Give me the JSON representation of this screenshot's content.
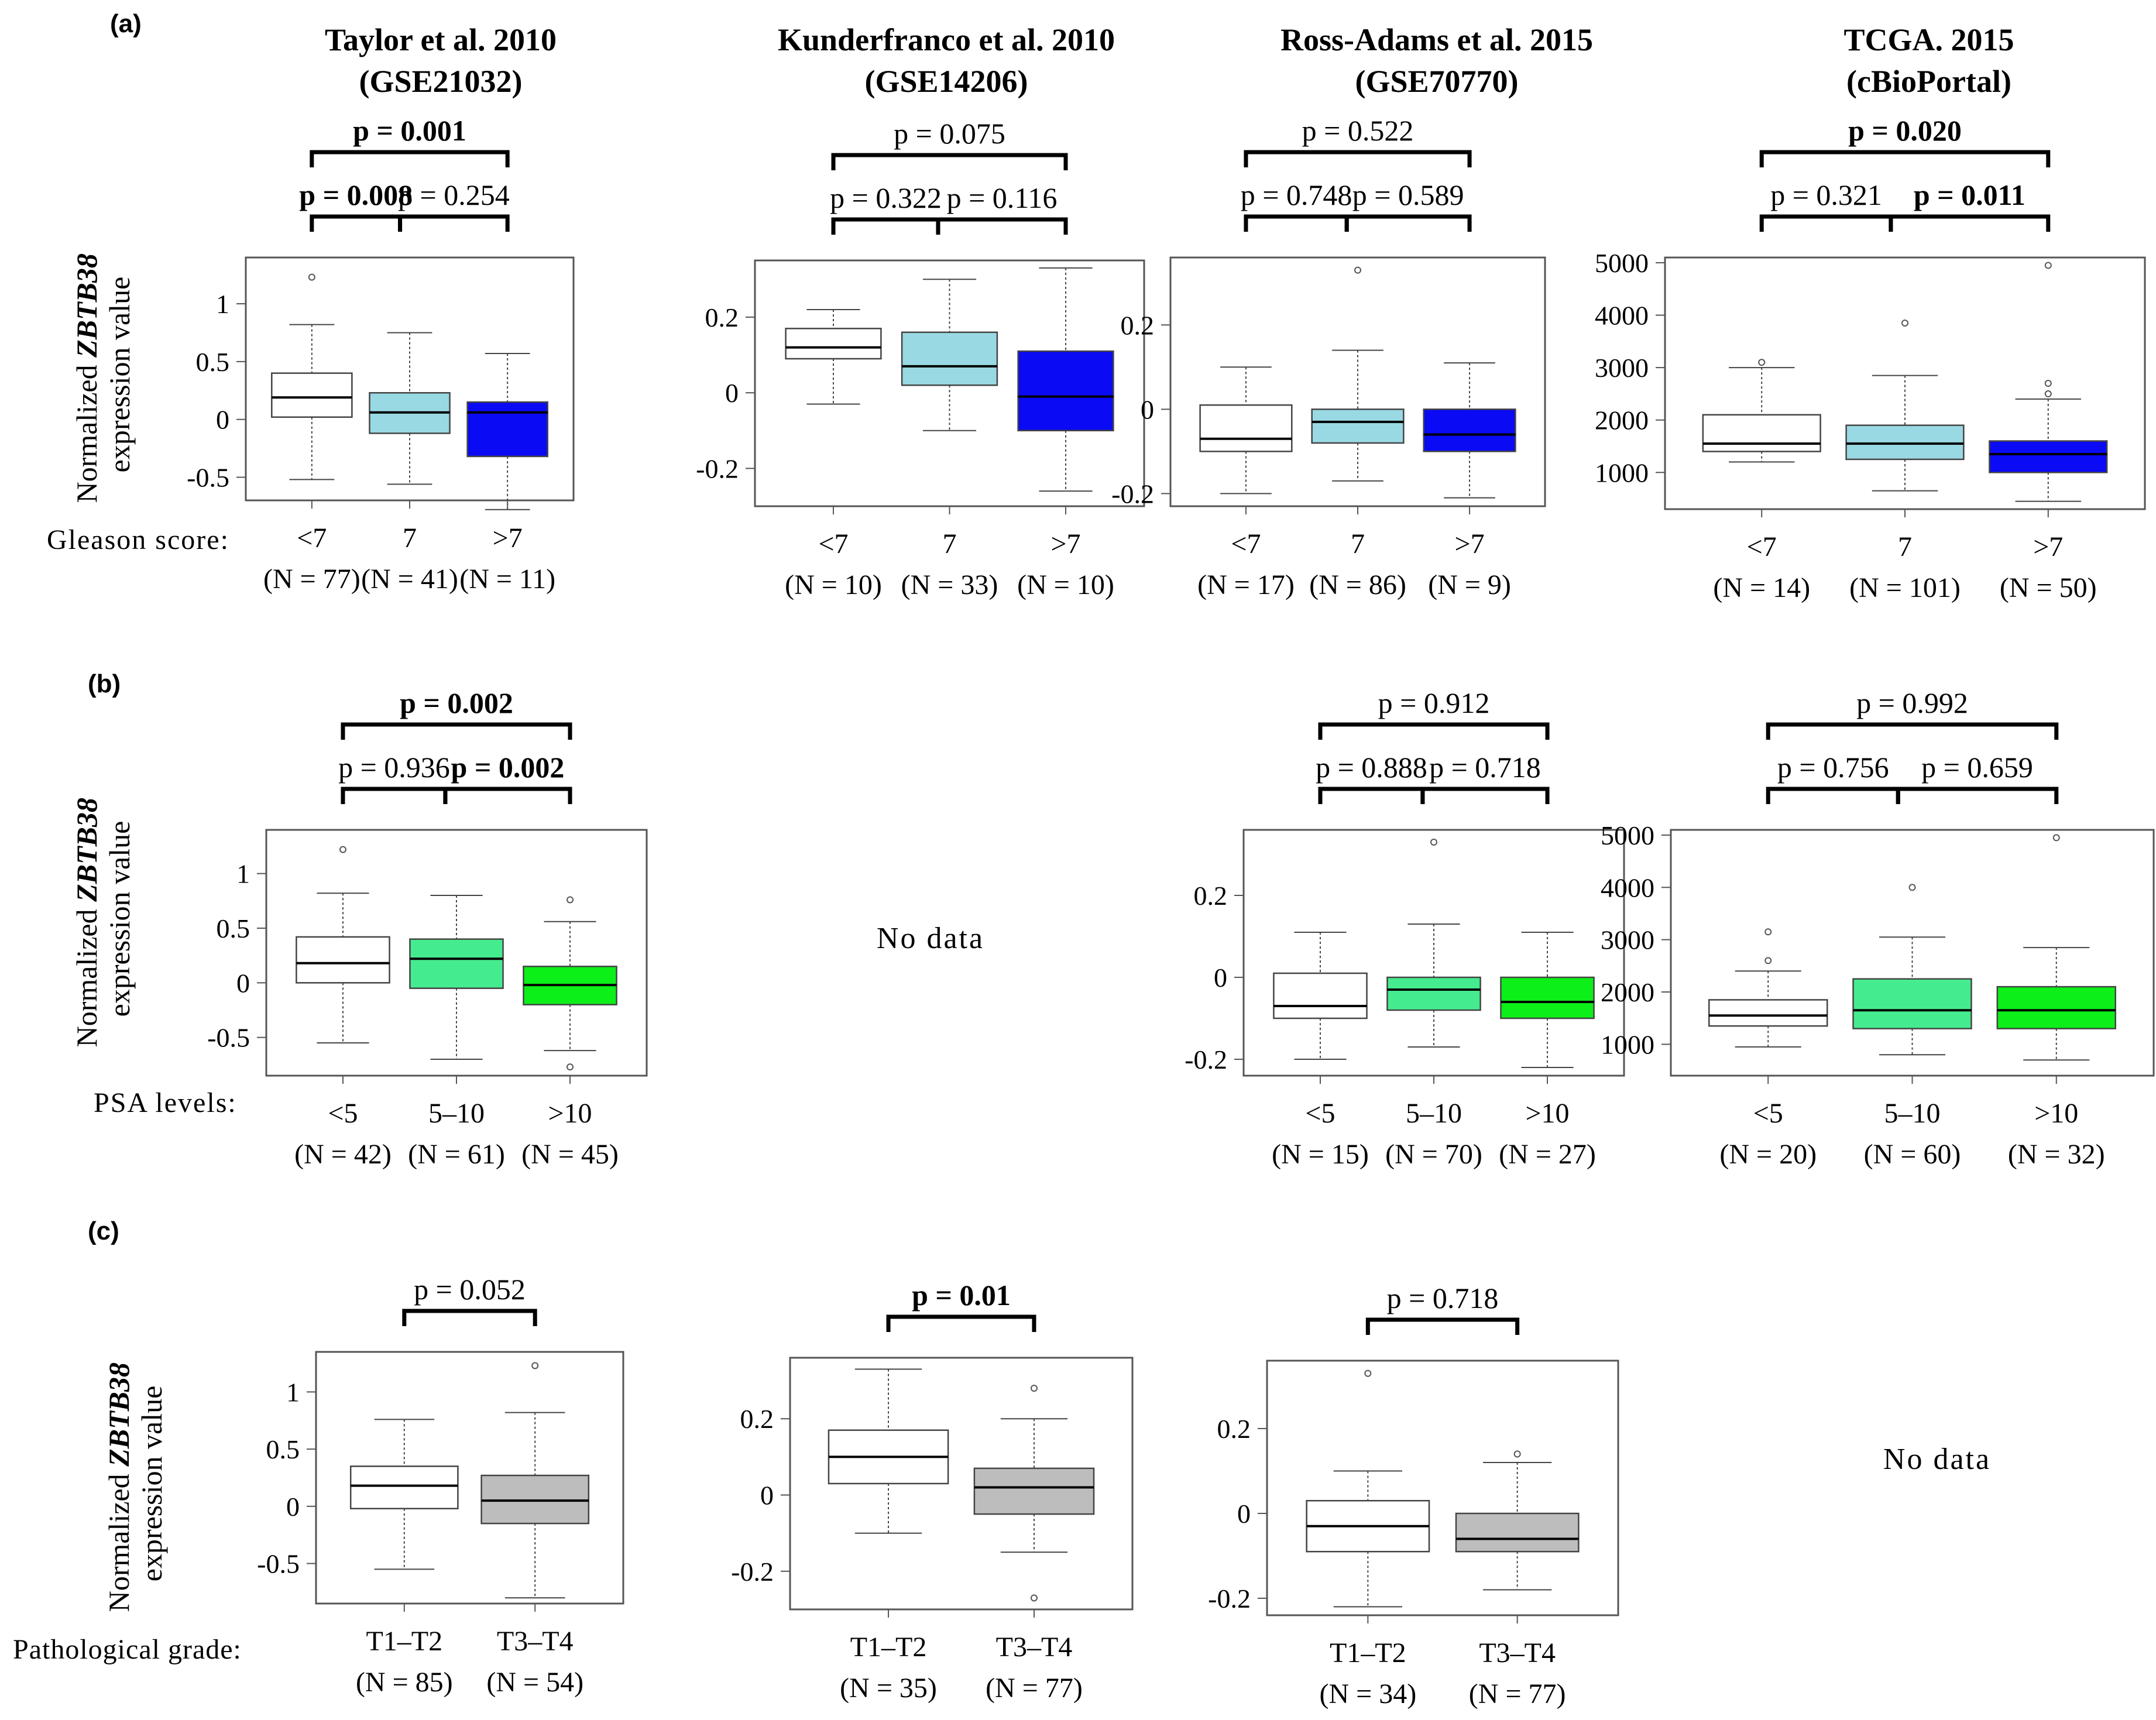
{
  "figure": {
    "row_labels": [
      "(a)",
      "(b)",
      "(c)"
    ],
    "column_titles": [
      {
        "line1": "Taylor et al. 2010",
        "line2": "(GSE21032)"
      },
      {
        "line1": "Kunderfranco et al. 2010",
        "line2": "(GSE14206)"
      },
      {
        "line1": "Ross-Adams et al. 2015",
        "line2": "(GSE70770)"
      },
      {
        "line1": "TCGA. 2015",
        "line2": "(cBioPortal)"
      }
    ],
    "ylabel_pre": "Normalized ",
    "ylabel_gene": "ZBTB38",
    "ylabel_line2": "expression value",
    "row_prefixes": [
      "Gleason score:",
      "PSA  levels:",
      "Pathological grade:"
    ],
    "no_data": "No data"
  },
  "colors": {
    "white_box": "#ffffff",
    "light_blue": "#99d9e3",
    "blue": "#0a0af5",
    "mint": "#45ec8f",
    "green": "#0cef18",
    "gray": "#bdbdbd"
  },
  "chart_data": [
    {
      "row": 0,
      "col": 0,
      "type": "box",
      "ylim": [
        -0.7,
        1.4
      ],
      "yticks": [
        -0.5,
        0,
        0.5,
        1
      ],
      "ytick_labels": [
        "-0.5",
        "0",
        "0.5",
        "1"
      ],
      "groups": [
        {
          "label": "<7",
          "n": "(N = 77)",
          "q1": 0.02,
          "median": 0.19,
          "q3": 0.4,
          "lo": -0.52,
          "hi": 0.82,
          "outliers": [
            1.23
          ],
          "color": "#ffffff"
        },
        {
          "label": "7",
          "n": "(N = 41)",
          "q1": -0.12,
          "median": 0.06,
          "q3": 0.23,
          "lo": -0.56,
          "hi": 0.75,
          "outliers": [],
          "color": "#99d9e3"
        },
        {
          "label": ">7",
          "n": "(N = 11)",
          "q1": -0.32,
          "median": 0.06,
          "q3": 0.15,
          "lo": -0.78,
          "hi": 0.57,
          "outliers": [],
          "color": "#0a0af5"
        }
      ],
      "comparisons": [
        {
          "text": "p = 0.008",
          "bold": true,
          "from": 0,
          "to": 1,
          "level": 0
        },
        {
          "text": "p = 0.254",
          "bold": false,
          "from": 1,
          "to": 2,
          "level": 0
        },
        {
          "text": "p = 0.001",
          "bold": true,
          "from": 0,
          "to": 2,
          "level": 1
        }
      ]
    },
    {
      "row": 0,
      "col": 1,
      "type": "box",
      "ylim": [
        -0.3,
        0.35
      ],
      "yticks": [
        -0.2,
        0,
        0.2
      ],
      "ytick_labels": [
        "-0.2",
        "0",
        "0.2"
      ],
      "groups": [
        {
          "label": "<7",
          "n": "(N = 10)",
          "q1": 0.09,
          "median": 0.12,
          "q3": 0.17,
          "lo": -0.03,
          "hi": 0.22,
          "outliers": [],
          "color": "#ffffff"
        },
        {
          "label": "7",
          "n": "(N = 33)",
          "q1": 0.02,
          "median": 0.07,
          "q3": 0.16,
          "lo": -0.1,
          "hi": 0.3,
          "outliers": [],
          "color": "#99d9e3"
        },
        {
          "label": ">7",
          "n": "(N = 10)",
          "q1": -0.1,
          "median": -0.01,
          "q3": 0.11,
          "lo": -0.26,
          "hi": 0.33,
          "outliers": [],
          "color": "#0a0af5"
        }
      ],
      "comparisons": [
        {
          "text": "p = 0.322",
          "bold": false,
          "from": 0,
          "to": 1,
          "level": 0
        },
        {
          "text": "p = 0.116",
          "bold": false,
          "from": 1,
          "to": 2,
          "level": 0
        },
        {
          "text": "p = 0.075",
          "bold": false,
          "from": 0,
          "to": 2,
          "level": 1
        }
      ]
    },
    {
      "row": 0,
      "col": 2,
      "type": "box",
      "ylim": [
        -0.23,
        0.36
      ],
      "yticks": [
        -0.2,
        0,
        0.2
      ],
      "ytick_labels": [
        "-0.2",
        "0",
        "0.2"
      ],
      "groups": [
        {
          "label": "<7",
          "n": "(N = 17)",
          "q1": -0.1,
          "median": -0.07,
          "q3": 0.01,
          "lo": -0.2,
          "hi": 0.1,
          "outliers": [],
          "color": "#ffffff"
        },
        {
          "label": "7",
          "n": "(N = 86)",
          "q1": -0.08,
          "median": -0.03,
          "q3": 0.0,
          "lo": -0.17,
          "hi": 0.14,
          "outliers": [
            0.33
          ],
          "color": "#99d9e3"
        },
        {
          "label": ">7",
          "n": "(N = 9)",
          "q1": -0.1,
          "median": -0.06,
          "q3": 0.0,
          "lo": -0.21,
          "hi": 0.11,
          "outliers": [],
          "color": "#0a0af5"
        }
      ],
      "comparisons": [
        {
          "text": "p = 0.748",
          "bold": false,
          "from": 0,
          "to": 1,
          "level": 0
        },
        {
          "text": "p = 0.589",
          "bold": false,
          "from": 1,
          "to": 2,
          "level": 0
        },
        {
          "text": "p = 0.522",
          "bold": false,
          "from": 0,
          "to": 2,
          "level": 1
        }
      ]
    },
    {
      "row": 0,
      "col": 3,
      "type": "box",
      "ylim": [
        300,
        5100
      ],
      "yticks": [
        1000,
        2000,
        3000,
        4000,
        5000
      ],
      "ytick_labels": [
        "1000",
        "2000",
        "3000",
        "4000",
        "5000"
      ],
      "groups": [
        {
          "label": "<7",
          "n": "(N = 14)",
          "q1": 1400,
          "median": 1550,
          "q3": 2100,
          "lo": 1200,
          "hi": 3000,
          "outliers": [
            3100
          ],
          "color": "#ffffff"
        },
        {
          "label": "7",
          "n": "(N = 101)",
          "q1": 1250,
          "median": 1550,
          "q3": 1900,
          "lo": 650,
          "hi": 2850,
          "outliers": [
            3850
          ],
          "color": "#99d9e3"
        },
        {
          "label": ">7",
          "n": "(N = 50)",
          "q1": 1000,
          "median": 1350,
          "q3": 1600,
          "lo": 450,
          "hi": 2400,
          "outliers": [
            2500,
            2700,
            4950
          ],
          "color": "#0a0af5"
        }
      ],
      "comparisons": [
        {
          "text": "p = 0.321",
          "bold": false,
          "from": 0,
          "to": 1,
          "level": 0
        },
        {
          "text": "p = 0.011",
          "bold": true,
          "from": 1,
          "to": 2,
          "level": 0
        },
        {
          "text": "p = 0.020",
          "bold": true,
          "from": 0,
          "to": 2,
          "level": 1
        }
      ]
    },
    {
      "row": 1,
      "col": 0,
      "type": "box",
      "ylim": [
        -0.85,
        1.4
      ],
      "yticks": [
        -0.5,
        0,
        0.5,
        1
      ],
      "ytick_labels": [
        "-0.5",
        "0",
        "0.5",
        "1"
      ],
      "groups": [
        {
          "label": "<5",
          "n": "(N = 42)",
          "q1": 0.0,
          "median": 0.18,
          "q3": 0.42,
          "lo": -0.55,
          "hi": 0.82,
          "outliers": [
            1.22
          ],
          "color": "#ffffff"
        },
        {
          "label": "5–10",
          "n": "(N = 61)",
          "q1": -0.05,
          "median": 0.22,
          "q3": 0.4,
          "lo": -0.7,
          "hi": 0.8,
          "outliers": [],
          "color": "#45ec8f"
        },
        {
          "label": ">10",
          "n": "(N = 45)",
          "q1": -0.2,
          "median": -0.02,
          "q3": 0.15,
          "lo": -0.62,
          "hi": 0.56,
          "outliers": [
            0.76,
            -0.77
          ],
          "color": "#0cef18"
        }
      ],
      "comparisons": [
        {
          "text": "p = 0.936",
          "bold": false,
          "from": 0,
          "to": 1,
          "level": 0
        },
        {
          "text": "p = 0.002",
          "bold": true,
          "from": 1,
          "to": 2,
          "level": 0
        },
        {
          "text": "p = 0.002",
          "bold": true,
          "from": 0,
          "to": 2,
          "level": 1
        }
      ]
    },
    {
      "row": 1,
      "col": 2,
      "type": "box",
      "ylim": [
        -0.24,
        0.36
      ],
      "yticks": [
        -0.2,
        0,
        0.2
      ],
      "ytick_labels": [
        "-0.2",
        "0",
        "0.2"
      ],
      "groups": [
        {
          "label": "<5",
          "n": "(N = 15)",
          "q1": -0.1,
          "median": -0.07,
          "q3": 0.01,
          "lo": -0.2,
          "hi": 0.11,
          "outliers": [],
          "color": "#ffffff"
        },
        {
          "label": "5–10",
          "n": "(N = 70)",
          "q1": -0.08,
          "median": -0.03,
          "q3": 0.0,
          "lo": -0.17,
          "hi": 0.13,
          "outliers": [
            0.33
          ],
          "color": "#45ec8f"
        },
        {
          "label": ">10",
          "n": "(N = 27)",
          "q1": -0.1,
          "median": -0.06,
          "q3": 0.0,
          "lo": -0.22,
          "hi": 0.11,
          "outliers": [],
          "color": "#0cef18"
        }
      ],
      "comparisons": [
        {
          "text": "p = 0.888",
          "bold": false,
          "from": 0,
          "to": 1,
          "level": 0
        },
        {
          "text": "p = 0.718",
          "bold": false,
          "from": 1,
          "to": 2,
          "level": 0
        },
        {
          "text": "p = 0.912",
          "bold": false,
          "from": 0,
          "to": 2,
          "level": 1
        }
      ]
    },
    {
      "row": 1,
      "col": 3,
      "type": "box",
      "ylim": [
        400,
        5100
      ],
      "yticks": [
        1000,
        2000,
        3000,
        4000,
        5000
      ],
      "ytick_labels": [
        "1000",
        "2000",
        "3000",
        "4000",
        "5000"
      ],
      "groups": [
        {
          "label": "<5",
          "n": "(N = 20)",
          "q1": 1350,
          "median": 1550,
          "q3": 1850,
          "lo": 950,
          "hi": 2400,
          "outliers": [
            2600,
            3150
          ],
          "color": "#ffffff"
        },
        {
          "label": "5–10",
          "n": "(N = 60)",
          "q1": 1300,
          "median": 1650,
          "q3": 2250,
          "lo": 800,
          "hi": 3050,
          "outliers": [
            4000
          ],
          "color": "#45ec8f"
        },
        {
          "label": ">10",
          "n": "(N = 32)",
          "q1": 1300,
          "median": 1650,
          "q3": 2100,
          "lo": 700,
          "hi": 2850,
          "outliers": [
            4950
          ],
          "color": "#0cef18"
        }
      ],
      "comparisons": [
        {
          "text": "p = 0.756",
          "bold": false,
          "from": 0,
          "to": 1,
          "level": 0
        },
        {
          "text": "p = 0.659",
          "bold": false,
          "from": 1,
          "to": 2,
          "level": 0
        },
        {
          "text": "p = 0.992",
          "bold": false,
          "from": 0,
          "to": 2,
          "level": 1
        }
      ]
    },
    {
      "row": 2,
      "col": 0,
      "type": "box",
      "ylim": [
        -0.85,
        1.35
      ],
      "yticks": [
        -0.5,
        0,
        0.5,
        1
      ],
      "ytick_labels": [
        "-0.5",
        "0",
        "0.5",
        "1"
      ],
      "groups": [
        {
          "label": "T1–T2",
          "n": "(N = 85)",
          "q1": -0.02,
          "median": 0.18,
          "q3": 0.35,
          "lo": -0.55,
          "hi": 0.76,
          "outliers": [],
          "color": "#ffffff"
        },
        {
          "label": "T3–T4",
          "n": "(N = 54)",
          "q1": -0.15,
          "median": 0.05,
          "q3": 0.27,
          "lo": -0.8,
          "hi": 0.82,
          "outliers": [
            1.23
          ],
          "color": "#bdbdbd"
        }
      ],
      "comparisons": [
        {
          "text": "p = 0.052",
          "bold": false,
          "from": 0,
          "to": 1,
          "level": 0
        }
      ]
    },
    {
      "row": 2,
      "col": 1,
      "type": "box",
      "ylim": [
        -0.3,
        0.36
      ],
      "yticks": [
        -0.2,
        0,
        0.2
      ],
      "ytick_labels": [
        "-0.2",
        "0",
        "0.2"
      ],
      "groups": [
        {
          "label": "T1–T2",
          "n": "(N = 35)",
          "q1": 0.03,
          "median": 0.1,
          "q3": 0.17,
          "lo": -0.1,
          "hi": 0.33,
          "outliers": [],
          "color": "#ffffff"
        },
        {
          "label": "T3–T4",
          "n": "(N = 77)",
          "q1": -0.05,
          "median": 0.02,
          "q3": 0.07,
          "lo": -0.15,
          "hi": 0.2,
          "outliers": [
            0.28,
            -0.27
          ],
          "color": "#bdbdbd"
        }
      ],
      "comparisons": [
        {
          "text": "p = 0.01",
          "bold": true,
          "from": 0,
          "to": 1,
          "level": 0
        }
      ]
    },
    {
      "row": 2,
      "col": 2,
      "type": "box",
      "ylim": [
        -0.24,
        0.36
      ],
      "yticks": [
        -0.2,
        0,
        0.2
      ],
      "ytick_labels": [
        "-0.2",
        "0",
        "0.2"
      ],
      "groups": [
        {
          "label": "T1–T2",
          "n": "(N = 34)",
          "q1": -0.09,
          "median": -0.03,
          "q3": 0.03,
          "lo": -0.22,
          "hi": 0.1,
          "outliers": [
            0.33
          ],
          "color": "#ffffff"
        },
        {
          "label": "T3–T4",
          "n": "(N = 77)",
          "q1": -0.09,
          "median": -0.06,
          "q3": 0.0,
          "lo": -0.18,
          "hi": 0.12,
          "outliers": [
            0.14
          ],
          "color": "#bdbdbd"
        }
      ],
      "comparisons": [
        {
          "text": "p = 0.718",
          "bold": false,
          "from": 0,
          "to": 1,
          "level": 0
        }
      ]
    }
  ]
}
